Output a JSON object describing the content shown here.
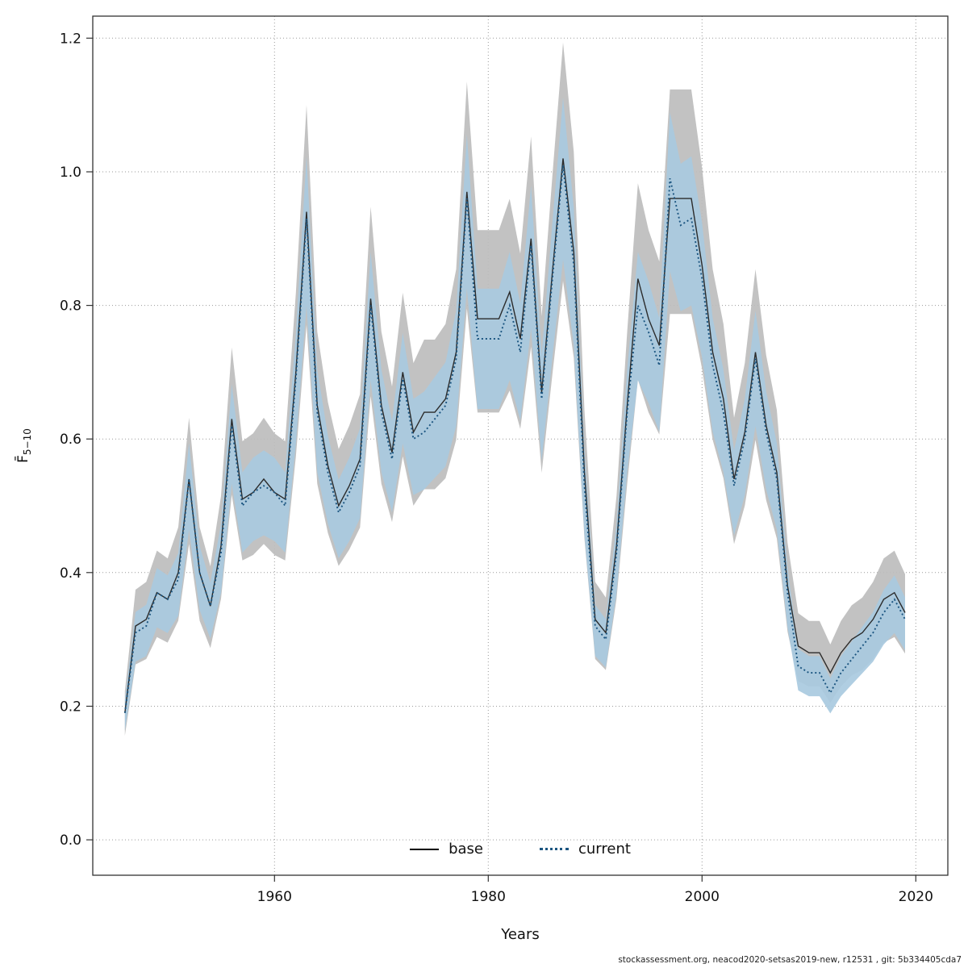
{
  "footer": {
    "text": "stockassessment.org, neacod2020-setsas2019-new, r12531 , git: 5b334405cda7"
  },
  "chart_data": {
    "type": "line",
    "title": "",
    "xlabel": "Years",
    "ylabel": "F̄5−10",
    "ylabel_main": "F̄",
    "ylabel_sub": "5−10",
    "grid": true,
    "legend_position": "bottom-center-inside",
    "xlim": [
      1943,
      2023
    ],
    "ylim": [
      -0.053,
      1.233
    ],
    "x_ticks": [
      1960,
      1980,
      2000,
      2020
    ],
    "y_ticks": [
      0.0,
      0.2,
      0.4,
      0.6,
      0.8,
      1.0,
      1.2
    ],
    "x": [
      1946,
      1947,
      1948,
      1949,
      1950,
      1951,
      1952,
      1953,
      1954,
      1955,
      1956,
      1957,
      1958,
      1959,
      1960,
      1961,
      1962,
      1963,
      1964,
      1965,
      1966,
      1967,
      1968,
      1969,
      1970,
      1971,
      1972,
      1973,
      1974,
      1975,
      1976,
      1977,
      1978,
      1979,
      1980,
      1981,
      1982,
      1983,
      1984,
      1985,
      1986,
      1987,
      1988,
      1989,
      1990,
      1991,
      1992,
      1993,
      1994,
      1995,
      1996,
      1997,
      1998,
      1999,
      2000,
      2001,
      2002,
      2003,
      2004,
      2005,
      2006,
      2007,
      2008,
      2009,
      2010,
      2011,
      2012,
      2013,
      2014,
      2015,
      2016,
      2017,
      2018,
      2019
    ],
    "series": [
      {
        "name": "base",
        "line_color": "#2b2b2b",
        "line_style": "solid",
        "band_color": "#bdbdbd",
        "ci_lower_factor": 0.82,
        "ci_upper_factor": 1.17,
        "values": [
          0.19,
          0.32,
          0.33,
          0.37,
          0.36,
          0.4,
          0.54,
          0.4,
          0.35,
          0.44,
          0.63,
          0.51,
          0.52,
          0.54,
          0.52,
          0.51,
          0.7,
          0.94,
          0.65,
          0.56,
          0.5,
          0.53,
          0.57,
          0.81,
          0.65,
          0.58,
          0.7,
          0.61,
          0.64,
          0.64,
          0.66,
          0.73,
          0.97,
          0.78,
          0.78,
          0.78,
          0.82,
          0.75,
          0.9,
          0.67,
          0.85,
          1.02,
          0.88,
          0.55,
          0.33,
          0.31,
          0.44,
          0.65,
          0.84,
          0.78,
          0.74,
          0.96,
          0.96,
          0.96,
          0.86,
          0.73,
          0.66,
          0.54,
          0.61,
          0.73,
          0.62,
          0.55,
          0.38,
          0.29,
          0.28,
          0.28,
          0.25,
          0.28,
          0.3,
          0.31,
          0.33,
          0.36,
          0.37,
          0.34
        ]
      },
      {
        "name": "current",
        "line_color": "#1b5580",
        "line_style": "dotted",
        "band_color": "#a9cadf",
        "ci_lower_factor": 0.86,
        "ci_upper_factor": 1.1,
        "values": [
          0.19,
          0.31,
          0.32,
          0.37,
          0.36,
          0.39,
          0.54,
          0.4,
          0.35,
          0.43,
          0.62,
          0.5,
          0.52,
          0.53,
          0.52,
          0.5,
          0.69,
          0.93,
          0.64,
          0.55,
          0.49,
          0.52,
          0.56,
          0.8,
          0.64,
          0.57,
          0.69,
          0.6,
          0.61,
          0.63,
          0.65,
          0.72,
          0.96,
          0.75,
          0.75,
          0.75,
          0.8,
          0.73,
          0.89,
          0.66,
          0.84,
          1.01,
          0.86,
          0.53,
          0.32,
          0.3,
          0.43,
          0.64,
          0.8,
          0.76,
          0.71,
          0.99,
          0.92,
          0.93,
          0.84,
          0.71,
          0.64,
          0.53,
          0.6,
          0.72,
          0.61,
          0.54,
          0.37,
          0.26,
          0.25,
          0.25,
          0.22,
          0.25,
          0.27,
          0.29,
          0.31,
          0.34,
          0.36,
          0.33
        ]
      }
    ]
  }
}
